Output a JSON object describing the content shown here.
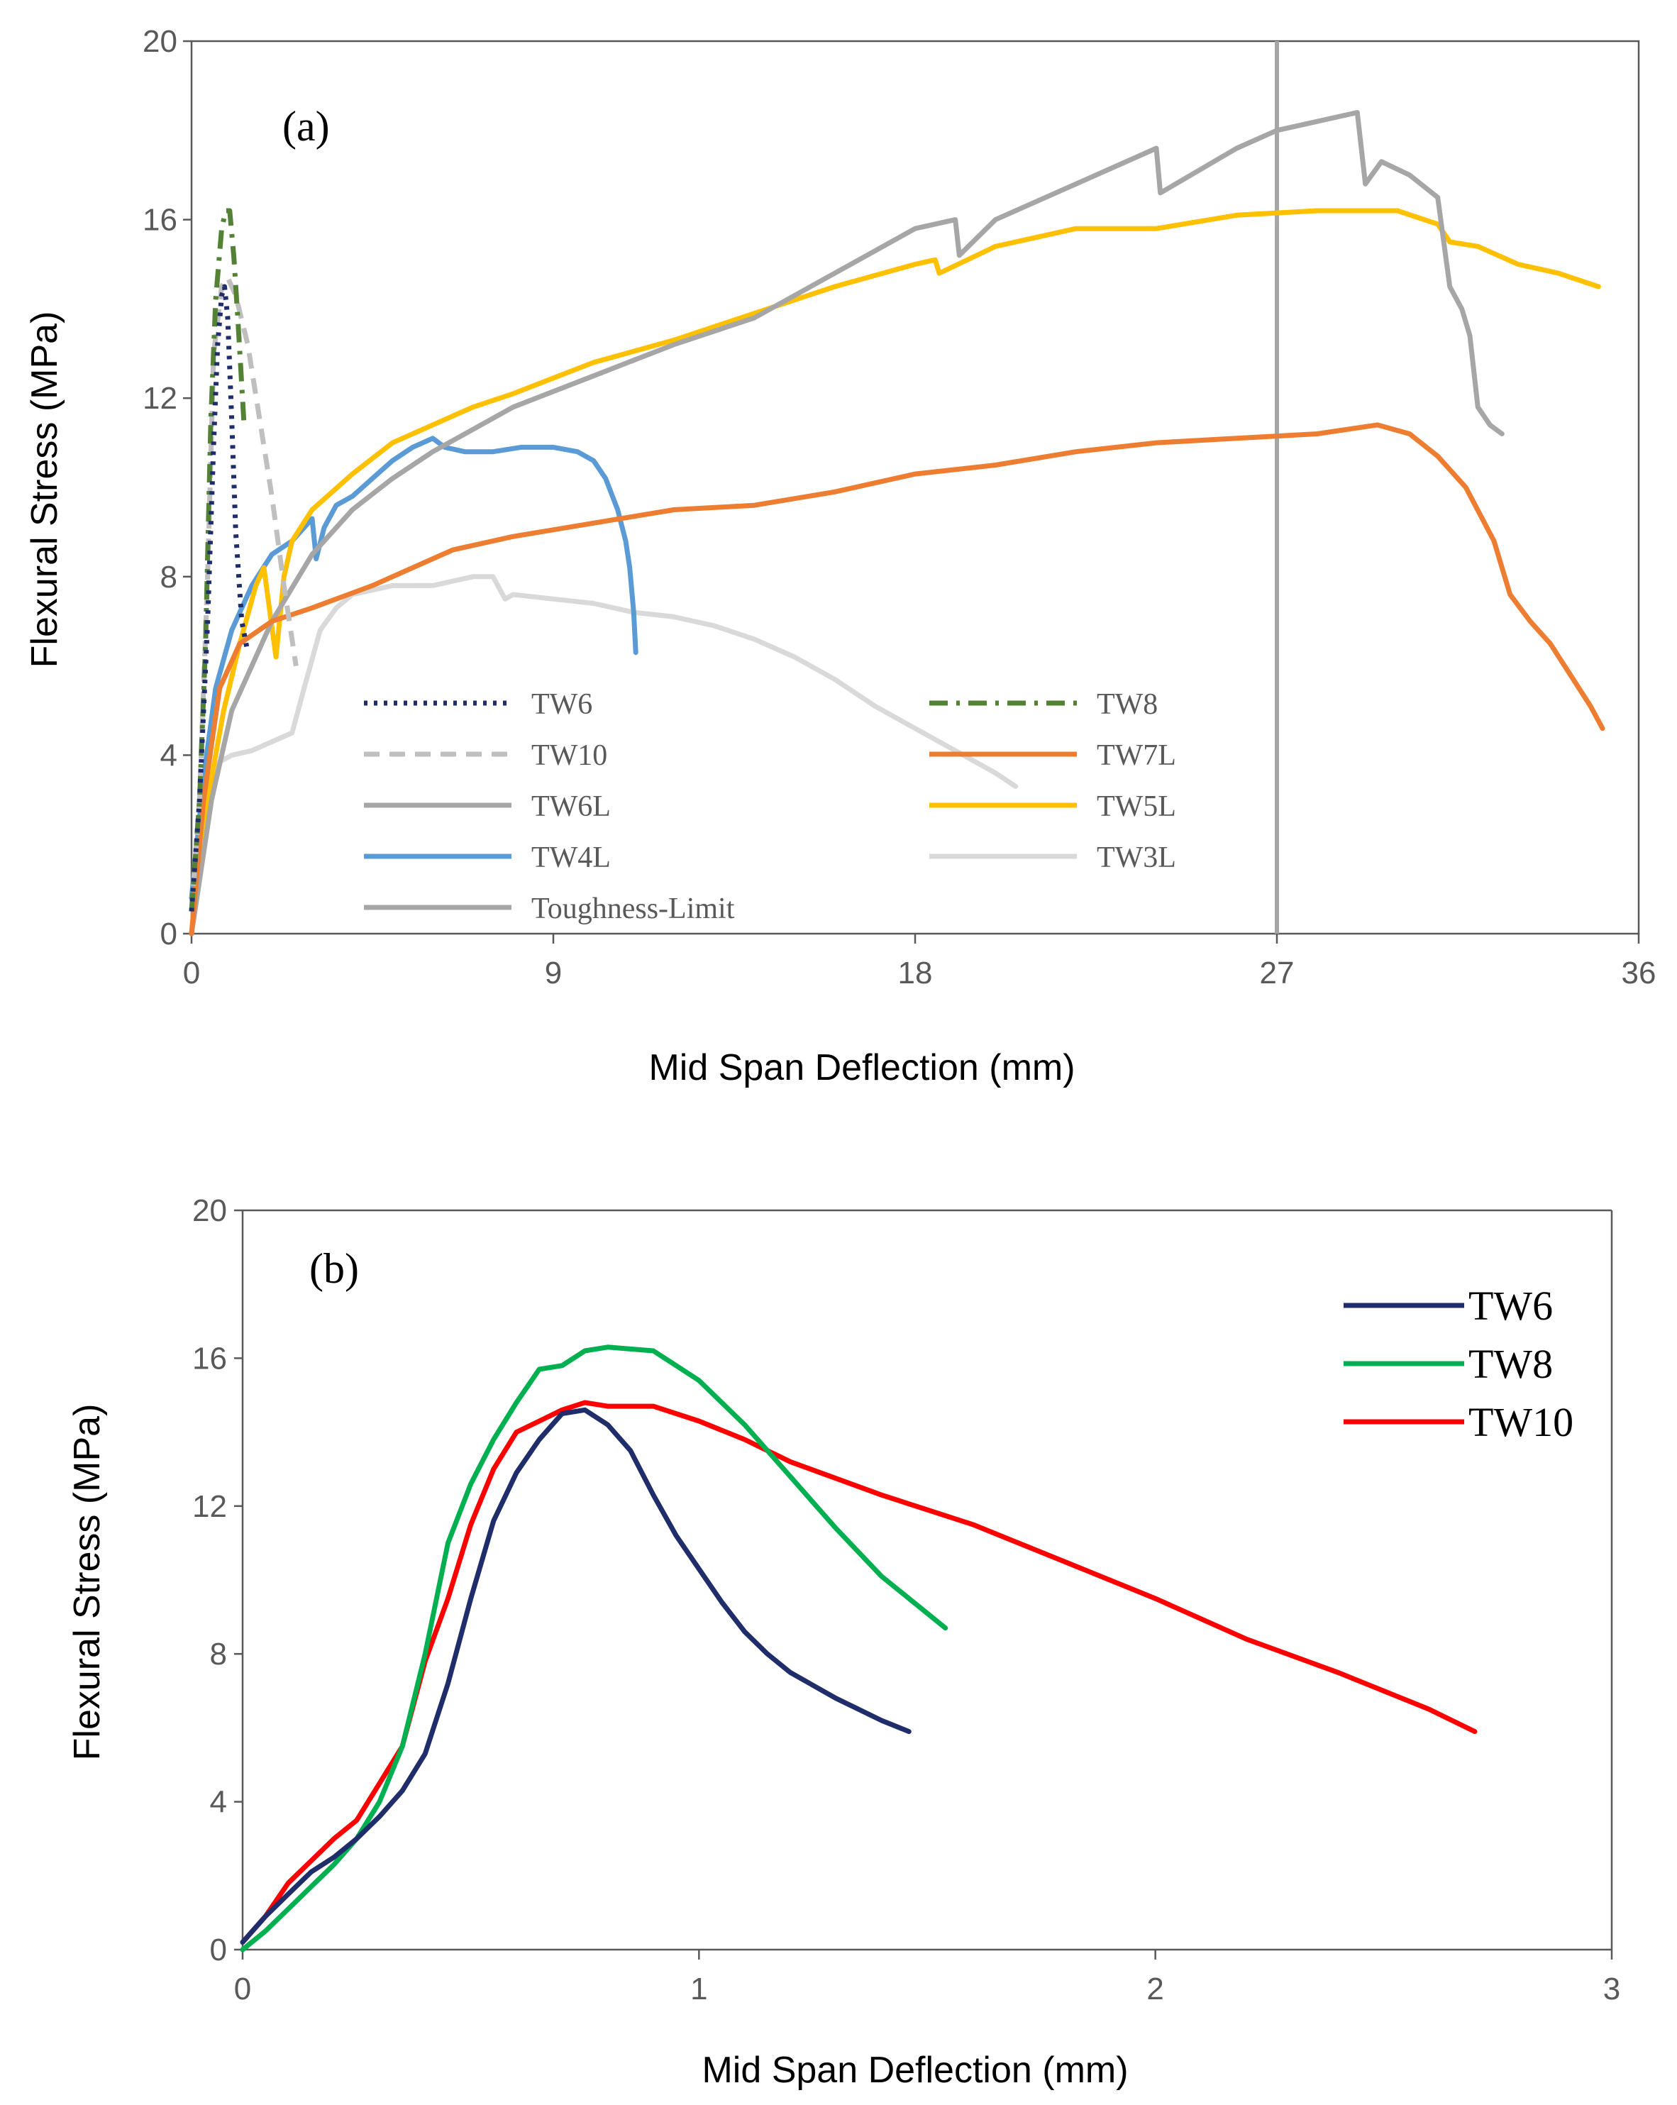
{
  "chart_data": [
    {
      "type": "line",
      "panel_label": "(a)",
      "xlabel": "Mid Span Deflection (mm)",
      "ylabel": "Flexural Stress (MPa)",
      "xlim": [
        0,
        36
      ],
      "ylim": [
        0,
        20
      ],
      "x_ticks": [
        "0",
        "9",
        "18",
        "27",
        "36"
      ],
      "y_ticks": [
        "0",
        "4",
        "8",
        "12",
        "16",
        "20"
      ],
      "grid": false,
      "legend_position": "lower-middle, two columns",
      "reference_line": {
        "name": "Toughness-Limit",
        "x": 27
      },
      "series": [
        {
          "name": "TW6",
          "color": "#1f2d6b",
          "dash": "dotted",
          "x": [
            0,
            0.2,
            0.4,
            0.55,
            0.65,
            0.75,
            0.82,
            0.9,
            1.0,
            1.1,
            1.25,
            1.4
          ],
          "y": [
            0.5,
            3,
            7,
            11,
            13.2,
            14.3,
            14.5,
            13.8,
            11.5,
            9,
            7,
            6.3
          ]
        },
        {
          "name": "TW8",
          "color": "#548235",
          "dash": "dashdot",
          "x": [
            0,
            0.2,
            0.35,
            0.48,
            0.6,
            0.75,
            0.85,
            0.95,
            1.05,
            1.15,
            1.3
          ],
          "y": [
            0.5,
            3,
            6.5,
            11.5,
            14.2,
            15.8,
            16.2,
            16.2,
            15.2,
            13.8,
            11.5
          ]
        },
        {
          "name": "TW10",
          "color": "#bfbfbf",
          "dash": "dashed",
          "x": [
            0,
            0.2,
            0.4,
            0.55,
            0.75,
            0.9,
            1.1,
            1.4,
            1.7,
            2.0,
            2.3,
            2.6
          ],
          "y": [
            0.5,
            3,
            8,
            13,
            14.5,
            14.7,
            14.3,
            13.2,
            11.5,
            9.8,
            7.8,
            6
          ]
        },
        {
          "name": "TW7L",
          "color": "#ed7d31",
          "dash": "solid",
          "x": [
            0,
            0.3,
            0.7,
            1.2,
            2,
            3,
            4.5,
            5.5,
            6.5,
            8,
            10,
            12,
            14,
            16,
            18,
            20,
            22,
            24,
            26,
            28,
            29.5,
            30.3,
            31,
            31.7,
            32.4,
            32.8,
            33.3,
            33.8,
            34.3,
            34.8,
            35.1
          ],
          "y": [
            0,
            3,
            5.5,
            6.5,
            7,
            7.3,
            7.8,
            8.2,
            8.6,
            8.9,
            9.2,
            9.5,
            9.6,
            9.9,
            10.3,
            10.5,
            10.8,
            11,
            11.1,
            11.2,
            11.4,
            11.2,
            10.7,
            10,
            8.8,
            7.6,
            7,
            6.5,
            5.8,
            5.1,
            4.6
          ]
        },
        {
          "name": "TW6L",
          "color": "#a6a6a6",
          "dash": "solid",
          "x": [
            0,
            0.5,
            1,
            2,
            3,
            4,
            5,
            6,
            8,
            10,
            12,
            14,
            16,
            18,
            19,
            19.1,
            20,
            22,
            24,
            24.1,
            26,
            27,
            28,
            29,
            29.2,
            29.6,
            30.3,
            31,
            31.3,
            31.6,
            31.8,
            32,
            32.3,
            32.6
          ],
          "y": [
            0,
            3,
            5,
            7,
            8.5,
            9.5,
            10.2,
            10.8,
            11.8,
            12.5,
            13.2,
            13.8,
            14.8,
            15.8,
            16,
            15.2,
            16,
            16.8,
            17.6,
            16.6,
            17.6,
            18,
            18.2,
            18.4,
            16.8,
            17.3,
            17,
            16.5,
            14.5,
            14,
            13.4,
            11.8,
            11.4,
            11.2
          ]
        },
        {
          "name": "TW5L",
          "color": "#ffc000",
          "dash": "solid",
          "x": [
            0,
            0.4,
            0.8,
            1.2,
            1.6,
            1.8,
            2.1,
            2.3,
            2.5,
            3,
            4,
            5,
            6,
            7,
            8,
            10,
            12,
            14,
            16,
            18,
            18.5,
            18.6,
            20,
            22,
            24,
            26,
            28,
            30,
            31,
            31.3,
            32,
            33,
            34,
            35
          ],
          "y": [
            0,
            3,
            5,
            6.5,
            7.8,
            8.2,
            6.2,
            8,
            8.8,
            9.5,
            10.3,
            11,
            11.4,
            11.8,
            12.1,
            12.8,
            13.3,
            13.9,
            14.5,
            15,
            15.1,
            14.8,
            15.4,
            15.8,
            15.8,
            16.1,
            16.2,
            16.2,
            15.9,
            15.5,
            15.4,
            15,
            14.8,
            14.5
          ]
        },
        {
          "name": "TW4L",
          "color": "#5b9bd5",
          "dash": "solid",
          "x": [
            0,
            0.3,
            0.6,
            1,
            1.5,
            2,
            2.5,
            3,
            3.1,
            3.3,
            3.6,
            4,
            4.5,
            5,
            5.5,
            6,
            6.3,
            6.8,
            7.5,
            8.2,
            9,
            9.6,
            10,
            10.3,
            10.6,
            10.8,
            10.9,
            11,
            11.05
          ],
          "y": [
            0.8,
            3.5,
            5.5,
            6.8,
            7.8,
            8.5,
            8.8,
            9.3,
            8.4,
            9.1,
            9.6,
            9.8,
            10.2,
            10.6,
            10.9,
            11.1,
            10.9,
            10.8,
            10.8,
            10.9,
            10.9,
            10.8,
            10.6,
            10.2,
            9.5,
            8.8,
            8.2,
            7.2,
            6.3
          ]
        },
        {
          "name": "TW3L",
          "color": "#d9d9d9",
          "dash": "solid",
          "x": [
            0,
            0.3,
            0.6,
            1,
            1.5,
            2,
            2.5,
            2.8,
            3.2,
            3.6,
            4,
            5,
            6,
            7,
            7.5,
            7.8,
            8,
            9,
            10,
            11,
            12,
            13,
            14,
            15,
            16,
            17,
            18,
            19,
            20,
            20.5
          ],
          "y": [
            0,
            2.5,
            3.8,
            4,
            4.1,
            4.3,
            4.5,
            5.5,
            6.8,
            7.3,
            7.6,
            7.8,
            7.8,
            8,
            8,
            7.5,
            7.6,
            7.5,
            7.4,
            7.2,
            7.1,
            6.9,
            6.6,
            6.2,
            5.7,
            5.1,
            4.6,
            4.1,
            3.6,
            3.3
          ]
        }
      ]
    },
    {
      "type": "line",
      "panel_label": "(b)",
      "xlabel": "Mid Span Deflection (mm)",
      "ylabel": "Flexural Stress (MPa)",
      "xlim": [
        0,
        3
      ],
      "ylim": [
        0,
        20
      ],
      "x_ticks": [
        "0",
        "1",
        "2",
        "3"
      ],
      "y_ticks": [
        "0",
        "4",
        "8",
        "12",
        "16",
        "20"
      ],
      "grid": false,
      "legend_position": "top-right",
      "series": [
        {
          "name": "TW6",
          "color": "#1f2d6b",
          "x": [
            0,
            0.05,
            0.1,
            0.15,
            0.2,
            0.25,
            0.3,
            0.35,
            0.4,
            0.45,
            0.5,
            0.55,
            0.6,
            0.65,
            0.7,
            0.75,
            0.8,
            0.85,
            0.9,
            0.95,
            1.0,
            1.05,
            1.1,
            1.15,
            1.2,
            1.3,
            1.4,
            1.46
          ],
          "y": [
            0.2,
            0.9,
            1.5,
            2.1,
            2.5,
            3,
            3.6,
            4.3,
            5.3,
            7.2,
            9.5,
            11.6,
            12.9,
            13.8,
            14.5,
            14.6,
            14.2,
            13.5,
            12.3,
            11.2,
            10.3,
            9.4,
            8.6,
            8,
            7.5,
            6.8,
            6.2,
            5.9
          ]
        },
        {
          "name": "TW8",
          "color": "#00b050",
          "x": [
            0,
            0.05,
            0.1,
            0.15,
            0.2,
            0.25,
            0.3,
            0.35,
            0.4,
            0.45,
            0.5,
            0.55,
            0.6,
            0.65,
            0.7,
            0.75,
            0.8,
            0.9,
            1.0,
            1.1,
            1.2,
            1.3,
            1.4,
            1.5,
            1.54
          ],
          "y": [
            0,
            0.5,
            1.1,
            1.7,
            2.3,
            3,
            4,
            5.5,
            8,
            11,
            12.6,
            13.8,
            14.8,
            15.7,
            15.8,
            16.2,
            16.3,
            16.2,
            15.4,
            14.2,
            12.8,
            11.4,
            10.1,
            9.1,
            8.7
          ]
        },
        {
          "name": "TW10",
          "color": "#ff0000",
          "x": [
            0,
            0.05,
            0.1,
            0.15,
            0.2,
            0.25,
            0.3,
            0.35,
            0.4,
            0.45,
            0.5,
            0.55,
            0.6,
            0.65,
            0.7,
            0.75,
            0.8,
            0.9,
            1.0,
            1.1,
            1.2,
            1.4,
            1.6,
            1.8,
            2.0,
            2.2,
            2.4,
            2.6,
            2.7
          ],
          "y": [
            0.2,
            0.9,
            1.8,
            2.4,
            3,
            3.5,
            4.5,
            5.5,
            7.8,
            9.5,
            11.5,
            13,
            14,
            14.3,
            14.6,
            14.8,
            14.7,
            14.7,
            14.3,
            13.8,
            13.2,
            12.3,
            11.5,
            10.5,
            9.5,
            8.4,
            7.5,
            6.5,
            5.9
          ]
        }
      ]
    }
  ]
}
